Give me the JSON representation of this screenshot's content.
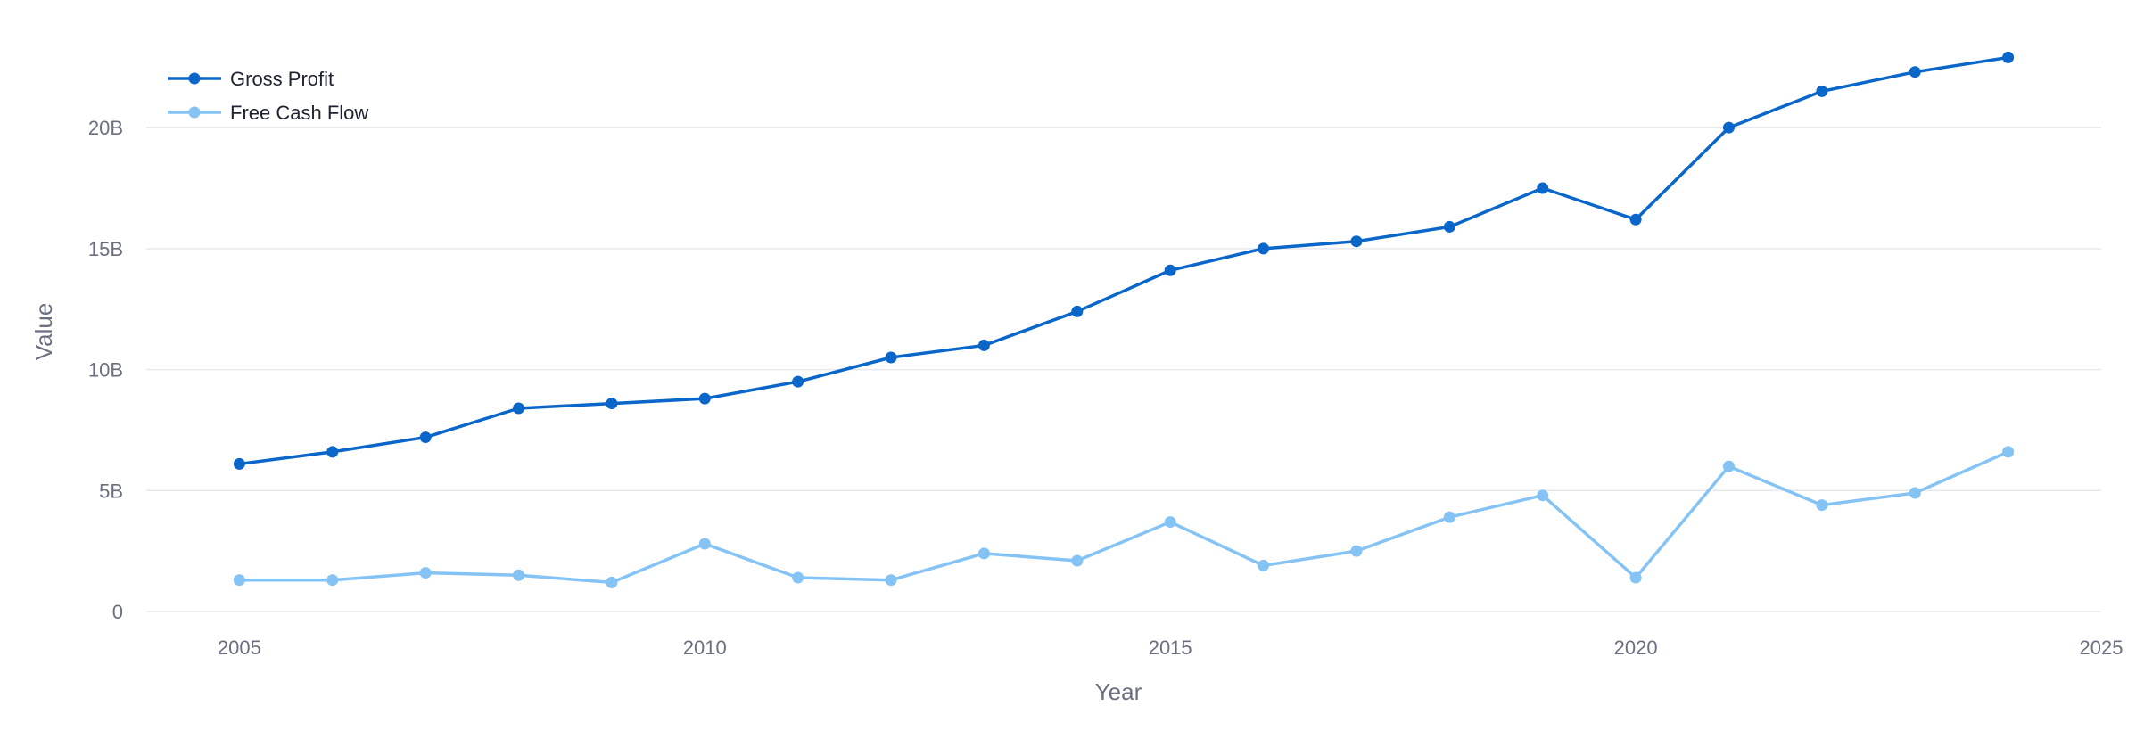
{
  "chart_data": {
    "type": "line",
    "title": "",
    "xlabel": "Year",
    "ylabel": "Value",
    "x": [
      2005,
      2006,
      2007,
      2008,
      2009,
      2010,
      2011,
      2012,
      2013,
      2014,
      2015,
      2016,
      2017,
      2018,
      2019,
      2020,
      2021,
      2022,
      2023,
      2024
    ],
    "xlim": [
      2004,
      2025
    ],
    "ylim": [
      0,
      23.8
    ],
    "x_ticks": [
      {
        "value": 2005,
        "label": "2005"
      },
      {
        "value": 2010,
        "label": "2010"
      },
      {
        "value": 2015,
        "label": "2015"
      },
      {
        "value": 2020,
        "label": "2020"
      },
      {
        "value": 2025,
        "label": "2025"
      }
    ],
    "y_ticks": [
      {
        "value": 0,
        "label": "0"
      },
      {
        "value": 5,
        "label": "5B"
      },
      {
        "value": 10,
        "label": "10B"
      },
      {
        "value": 15,
        "label": "15B"
      },
      {
        "value": 20,
        "label": "20B"
      }
    ],
    "y_unit": "billions",
    "grid": "horizontal",
    "legend_position": "top-left",
    "series": [
      {
        "name": "Gross Profit",
        "color": "#0a66c8",
        "values": [
          6.1,
          6.6,
          7.2,
          8.4,
          8.6,
          8.8,
          9.5,
          10.5,
          11.0,
          12.4,
          14.1,
          15.0,
          15.3,
          15.9,
          17.5,
          16.2,
          20.0,
          21.5,
          22.3,
          22.9
        ]
      },
      {
        "name": "Free Cash Flow",
        "color": "#84c3f4",
        "values": [
          1.3,
          1.3,
          1.6,
          1.5,
          1.2,
          2.8,
          1.4,
          1.3,
          2.4,
          2.1,
          3.7,
          1.9,
          2.5,
          3.9,
          4.8,
          1.4,
          6.0,
          4.4,
          4.9,
          6.6
        ]
      }
    ]
  }
}
